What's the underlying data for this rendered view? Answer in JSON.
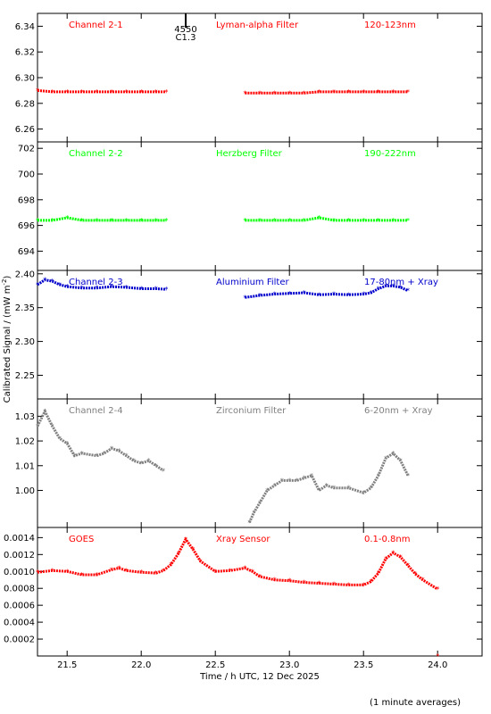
{
  "chart_data": {
    "type": "scatter",
    "xlabel": "Time / h UTC, 12 Dec 2025",
    "ylabel_main": "Calibrated Signal / (mW m",
    "ylabel_exp": "-2",
    "ylabel_close": ")",
    "xlim": [
      21.3,
      24.3
    ],
    "xticks": [
      21.5,
      22.0,
      22.5,
      23.0,
      23.5,
      24.0
    ],
    "xtick_labels": [
      "21.5",
      "22.0",
      "22.5",
      "23.0",
      "23.5",
      "24.0"
    ],
    "marker": {
      "value": 22.3,
      "labels": [
        "4550",
        "C1.3"
      ]
    },
    "footnote": "(1 minute averages)",
    "panels": [
      {
        "name": "Channel 2-1",
        "filter": "Lyman-alpha Filter",
        "band": "120-123nm",
        "color": "#ff0000",
        "ylim": [
          6.25,
          6.35
        ],
        "yticks": [
          6.26,
          6.28,
          6.3,
          6.32,
          6.34
        ],
        "ytick_labels": [
          "6.26",
          "6.28",
          "6.30",
          "6.32",
          "6.34"
        ],
        "segments": [
          {
            "x": [
              21.3,
              21.4,
              21.5,
              21.6,
              21.7,
              21.8,
              21.9,
              22.0,
              22.1,
              22.17
            ],
            "y": [
              6.29,
              6.289,
              6.289,
              6.289,
              6.289,
              6.289,
              6.289,
              6.289,
              6.289,
              6.289
            ]
          },
          {
            "x": [
              22.7,
              22.8,
              22.9,
              23.0,
              23.1,
              23.2,
              23.3,
              23.4,
              23.5,
              23.6,
              23.7,
              23.8
            ],
            "y": [
              6.288,
              6.288,
              6.288,
              6.288,
              6.288,
              6.289,
              6.289,
              6.289,
              6.289,
              6.289,
              6.289,
              6.289
            ]
          }
        ]
      },
      {
        "name": "Channel 2-2",
        "filter": "Herzberg Filter",
        "band": "190-222nm",
        "color": "#00ff00",
        "ylim": [
          692.5,
          702.5
        ],
        "yticks": [
          694,
          696,
          698,
          700,
          702
        ],
        "ytick_labels": [
          "694",
          "696",
          "698",
          "700",
          "702"
        ],
        "segments": [
          {
            "x": [
              21.3,
              21.4,
              21.5,
              21.6,
              21.7,
              21.8,
              21.9,
              22.0,
              22.1,
              22.17
            ],
            "y": [
              696.4,
              696.4,
              696.6,
              696.4,
              696.4,
              696.4,
              696.4,
              696.4,
              696.4,
              696.4
            ]
          },
          {
            "x": [
              22.7,
              22.8,
              22.9,
              23.0,
              23.1,
              23.2,
              23.3,
              23.4,
              23.5,
              23.6,
              23.7,
              23.8
            ],
            "y": [
              696.4,
              696.4,
              696.4,
              696.4,
              696.4,
              696.6,
              696.4,
              696.4,
              696.4,
              696.4,
              696.4,
              696.4
            ]
          }
        ]
      },
      {
        "name": "Channel 2-3",
        "filter": "Aluminium Filter",
        "band": "17-80nm + Xray",
        "color": "#0000cc",
        "ylim": [
          2.215,
          2.405
        ],
        "yticks": [
          2.25,
          2.3,
          2.35,
          2.4
        ],
        "ytick_labels": [
          "2.25",
          "2.30",
          "2.35",
          "2.40"
        ],
        "segments": [
          {
            "x": [
              21.3,
              21.35,
              21.4,
              21.45,
              21.5,
              21.6,
              21.7,
              21.8,
              21.9,
              22.0,
              22.1,
              22.17
            ],
            "y": [
              2.384,
              2.391,
              2.389,
              2.384,
              2.381,
              2.379,
              2.379,
              2.381,
              2.38,
              2.378,
              2.378,
              2.377
            ]
          },
          {
            "x": [
              22.7,
              22.8,
              22.9,
              23.0,
              23.1,
              23.2,
              23.3,
              23.4,
              23.5,
              23.55,
              23.6,
              23.65,
              23.7,
              23.75,
              23.8
            ],
            "y": [
              2.365,
              2.368,
              2.37,
              2.371,
              2.372,
              2.369,
              2.37,
              2.369,
              2.37,
              2.372,
              2.378,
              2.382,
              2.382,
              2.38,
              2.375
            ]
          }
        ]
      },
      {
        "name": "Channel 2-4",
        "filter": "Zirconium Filter",
        "band": "6-20nm + Xray",
        "color": "#808080",
        "ylim": [
          0.985,
          1.037
        ],
        "yticks": [
          1.0,
          1.01,
          1.02,
          1.03
        ],
        "ytick_labels": [
          "1.00",
          "1.01",
          "1.02",
          "1.03"
        ],
        "segments": [
          {
            "x": [
              21.3,
              21.35,
              21.4,
              21.45,
              21.5,
              21.55,
              21.6,
              21.7,
              21.75,
              21.8,
              21.85,
              21.9,
              21.95,
              22.0,
              22.05,
              22.1,
              22.15
            ],
            "y": [
              1.026,
              1.032,
              1.026,
              1.021,
              1.019,
              1.014,
              1.015,
              1.014,
              1.015,
              1.017,
              1.016,
              1.014,
              1.012,
              1.011,
              1.012,
              1.01,
              1.008
            ]
          },
          {
            "x": [
              22.73,
              22.76,
              22.8,
              22.85,
              22.9,
              22.95,
              23.0,
              23.05,
              23.1,
              23.15,
              23.2,
              23.25,
              23.3,
              23.4,
              23.5,
              23.55,
              23.6,
              23.65,
              23.7,
              23.75,
              23.8
            ],
            "y": [
              0.987,
              0.991,
              0.995,
              1.0,
              1.002,
              1.004,
              1.004,
              1.004,
              1.005,
              1.006,
              1.0,
              1.002,
              1.001,
              1.001,
              0.999,
              1.001,
              1.006,
              1.013,
              1.015,
              1.012,
              1.006
            ]
          }
        ]
      },
      {
        "name": "GOES",
        "filter": "Xray Sensor",
        "band": "0.1-0.8nm",
        "color": "#ff0000",
        "ylim": [
          0.0,
          0.00152
        ],
        "yticks": [
          0.0002,
          0.0004,
          0.0006,
          0.0008,
          0.001,
          0.0012,
          0.0014
        ],
        "ytick_labels": [
          "0.0002",
          "0.0004",
          "0.0006",
          "0.0008",
          "0.0010",
          "0.0012",
          "0.0014"
        ],
        "segments": [
          {
            "x": [
              21.3,
              21.4,
              21.5,
              21.6,
              21.7,
              21.8,
              21.85,
              21.9,
              22.0,
              22.1,
              22.15,
              22.2,
              22.25,
              22.3,
              22.35,
              22.4,
              22.5,
              22.6,
              22.7,
              22.75,
              22.8,
              22.9,
              23.0,
              23.1,
              23.2,
              23.3,
              23.4,
              23.5,
              23.55,
              23.6,
              23.65,
              23.7,
              23.75,
              23.8,
              23.85,
              23.9,
              24.0
            ],
            "y": [
              0.00099,
              0.00101,
              0.001,
              0.00096,
              0.00096,
              0.00102,
              0.00104,
              0.00101,
              0.00099,
              0.00098,
              0.00101,
              0.00108,
              0.00121,
              0.00138,
              0.00126,
              0.00112,
              0.001,
              0.00101,
              0.00104,
              0.001,
              0.00094,
              0.0009,
              0.00089,
              0.00087,
              0.00086,
              0.00085,
              0.00084,
              0.00084,
              0.00088,
              0.00098,
              0.00115,
              0.00122,
              0.00117,
              0.00107,
              0.00097,
              0.0009,
              0.00079
            ]
          },
          {
            "x": [
              24.0
            ],
            "y": [
              0.0
            ]
          }
        ]
      }
    ]
  }
}
